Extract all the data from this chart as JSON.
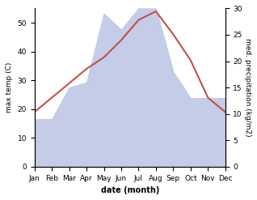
{
  "months": [
    "Jan",
    "Feb",
    "Mar",
    "Apr",
    "May",
    "Jun",
    "Jul",
    "Aug",
    "Sep",
    "Oct",
    "Nov",
    "Dec"
  ],
  "temperature": [
    19,
    24,
    29,
    34,
    38,
    44,
    51,
    54,
    46,
    37,
    24,
    19
  ],
  "precipitation": [
    9,
    9,
    15,
    16,
    29,
    26,
    30,
    30,
    18,
    13,
    13,
    13
  ],
  "temp_color": "#c0504d",
  "precip_fill_color": "#c5cce8",
  "left_ylabel": "max temp (C)",
  "right_ylabel": "med. precipitation (kg/m2)",
  "xlabel": "date (month)",
  "left_ylim": [
    0,
    55
  ],
  "left_yticks": [
    0,
    10,
    20,
    30,
    40,
    50
  ],
  "right_ylim": [
    0,
    30
  ],
  "right_yticks": [
    0,
    5,
    10,
    15,
    20,
    25,
    30
  ],
  "background_color": "#ffffff",
  "fig_width": 3.18,
  "fig_height": 2.47,
  "dpi": 100
}
